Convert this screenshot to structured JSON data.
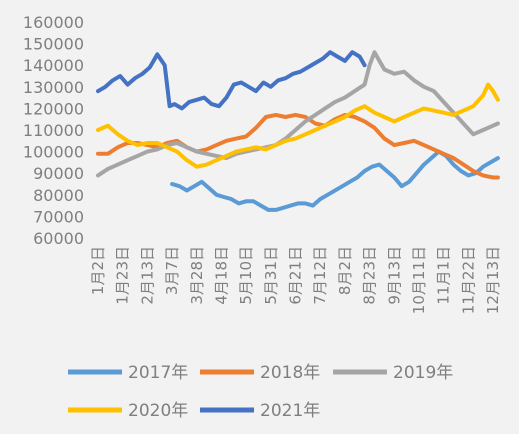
{
  "chart_data": {
    "type": "line",
    "title": "",
    "xlabel": "",
    "ylabel": "",
    "ylim": [
      60000,
      160000
    ],
    "yticks": [
      60000,
      70000,
      80000,
      90000,
      100000,
      110000,
      120000,
      130000,
      140000,
      150000,
      160000
    ],
    "grid": false,
    "legend_position": "bottom",
    "x_tick_labels": [
      "1月2日",
      "1月23日",
      "2月13日",
      "3月7日",
      "3月28日",
      "4月18日",
      "5月10日",
      "5月31日",
      "6月21日",
      "7月12日",
      "8月2日",
      "8月23日",
      "9月13日",
      "10月11日",
      "11月1日",
      "11月22日",
      "12月13日"
    ],
    "series": [
      {
        "name": "2017年",
        "color": "#5b9bd5",
        "x": [
          3.0,
          3.3,
          3.6,
          3.9,
          4.2,
          4.5,
          4.8,
          5.1,
          5.4,
          5.7,
          6.0,
          6.3,
          6.6,
          6.9,
          7.2,
          7.5,
          7.8,
          8.1,
          8.4,
          8.7,
          9.0,
          9.3,
          9.6,
          9.9,
          10.2,
          10.5,
          10.8,
          11.1,
          11.4,
          11.7,
          12.0,
          12.3,
          12.6,
          12.9,
          13.2,
          13.5,
          13.8,
          14.1,
          14.4,
          14.7,
          15.0,
          15.3,
          15.6,
          15.9,
          16.2
        ],
        "values": [
          85000,
          84000,
          82000,
          84000,
          86000,
          83000,
          80000,
          79000,
          78000,
          76000,
          77000,
          77000,
          75000,
          73000,
          73000,
          74000,
          75000,
          76000,
          76000,
          75000,
          78000,
          80000,
          82000,
          84000,
          86000,
          88000,
          91000,
          93000,
          94000,
          91000,
          88000,
          84000,
          86000,
          90000,
          94000,
          97000,
          100000,
          98000,
          94000,
          91000,
          89000,
          90000,
          93000,
          95000,
          97000
        ]
      },
      {
        "name": "2018年",
        "color": "#ed7d31",
        "x": [
          0,
          0.4,
          0.8,
          1.2,
          1.6,
          2.0,
          2.4,
          2.8,
          3.2,
          3.6,
          4.0,
          4.4,
          4.8,
          5.2,
          5.6,
          6.0,
          6.4,
          6.8,
          7.2,
          7.6,
          8.0,
          8.4,
          8.8,
          9.2,
          9.6,
          10.0,
          10.4,
          10.8,
          11.2,
          11.6,
          12.0,
          12.4,
          12.8,
          13.2,
          13.6,
          14.0,
          14.4,
          14.8,
          15.2,
          15.6,
          16.0,
          16.2
        ],
        "values": [
          99000,
          99000,
          102000,
          104000,
          104000,
          103000,
          102000,
          104000,
          105000,
          102000,
          100000,
          101000,
          103000,
          105000,
          106000,
          107000,
          111000,
          116000,
          117000,
          116000,
          117000,
          116000,
          113000,
          112000,
          115000,
          117000,
          116000,
          114000,
          111000,
          106000,
          103000,
          104000,
          105000,
          103000,
          101000,
          99000,
          97000,
          94000,
          91000,
          89000,
          88000,
          88000
        ]
      },
      {
        "name": "2019年",
        "color": "#a5a5a5",
        "x": [
          0,
          0.4,
          0.8,
          1.2,
          1.6,
          2.0,
          2.4,
          2.8,
          3.2,
          3.6,
          4.0,
          4.4,
          4.8,
          5.2,
          5.6,
          6.0,
          6.4,
          6.8,
          7.2,
          7.6,
          8.0,
          8.4,
          8.8,
          9.2,
          9.6,
          10.0,
          10.4,
          10.8,
          11.0,
          11.2,
          11.4,
          11.6,
          12.0,
          12.4,
          12.8,
          13.2,
          13.6,
          14.0,
          14.4,
          14.8,
          15.2,
          15.6,
          16.0,
          16.2
        ],
        "values": [
          89000,
          92000,
          94000,
          96000,
          98000,
          100000,
          101000,
          103000,
          104000,
          102000,
          100000,
          99000,
          98000,
          97000,
          99000,
          100000,
          101000,
          102000,
          103000,
          106000,
          110000,
          114000,
          117000,
          120000,
          123000,
          125000,
          128000,
          131000,
          140000,
          146000,
          142000,
          138000,
          136000,
          137000,
          133000,
          130000,
          128000,
          123000,
          118000,
          113000,
          108000,
          110000,
          112000,
          113000
        ]
      },
      {
        "name": "2020年",
        "color": "#ffc000",
        "x": [
          0,
          0.4,
          0.8,
          1.2,
          1.6,
          2.0,
          2.4,
          2.8,
          3.2,
          3.6,
          4.0,
          4.4,
          4.8,
          5.2,
          5.6,
          6.0,
          6.4,
          6.8,
          7.2,
          7.6,
          8.0,
          8.4,
          8.8,
          9.2,
          9.6,
          10.0,
          10.4,
          10.8,
          11.2,
          11.6,
          12.0,
          12.4,
          12.8,
          13.2,
          13.6,
          14.0,
          14.4,
          14.8,
          15.2,
          15.6,
          15.8,
          16.0,
          16.2
        ],
        "values": [
          110000,
          112000,
          108000,
          105000,
          103000,
          104000,
          104000,
          102000,
          100000,
          96000,
          93000,
          94000,
          96000,
          98000,
          100000,
          101000,
          102000,
          101000,
          103000,
          105000,
          106000,
          108000,
          110000,
          112000,
          114000,
          116000,
          119000,
          121000,
          118000,
          116000,
          114000,
          116000,
          118000,
          120000,
          119000,
          118000,
          117000,
          119000,
          121000,
          126000,
          131000,
          128000,
          124000
        ]
      },
      {
        "name": "2021年",
        "color": "#4472c4",
        "x": [
          0,
          0.3,
          0.6,
          0.9,
          1.2,
          1.5,
          1.8,
          2.1,
          2.4,
          2.7,
          2.9,
          3.1,
          3.4,
          3.7,
          4.0,
          4.3,
          4.6,
          4.9,
          5.2,
          5.5,
          5.8,
          6.1,
          6.4,
          6.7,
          7.0,
          7.3,
          7.6,
          7.9,
          8.2,
          8.5,
          8.8,
          9.1,
          9.4,
          9.7,
          10.0,
          10.3,
          10.6,
          10.8
        ],
        "values": [
          128000,
          130000,
          133000,
          135000,
          131000,
          134000,
          136000,
          139000,
          145000,
          140000,
          121000,
          122000,
          120000,
          123000,
          124000,
          125000,
          122000,
          121000,
          125000,
          131000,
          132000,
          130000,
          128000,
          132000,
          130000,
          133000,
          134000,
          136000,
          137000,
          139000,
          141000,
          143000,
          146000,
          144000,
          142000,
          146000,
          144000,
          140000
        ]
      }
    ]
  }
}
